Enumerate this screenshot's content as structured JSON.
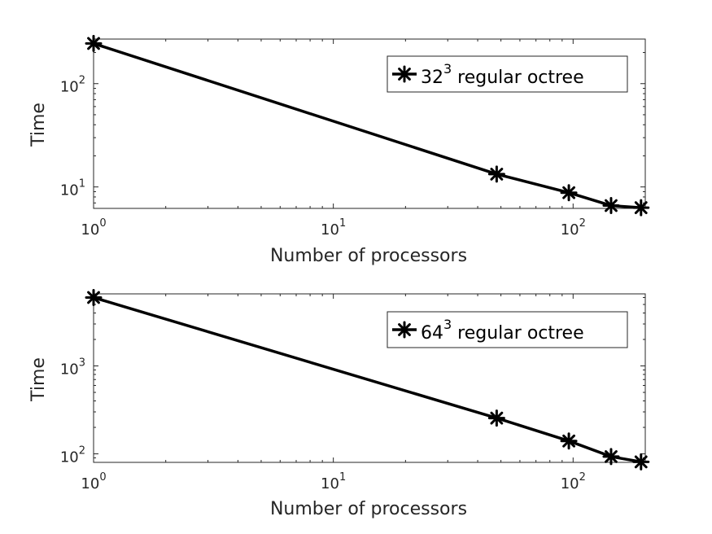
{
  "colors": {
    "line": "#000000",
    "axis": "#262626",
    "background": "#ffffff"
  },
  "chart_data": [
    {
      "type": "line",
      "xscale": "log",
      "yscale": "log",
      "xlim": [
        1,
        200
      ],
      "ylim": [
        6.2,
        270
      ],
      "xlabel": "Number of processors",
      "ylabel": "Time",
      "x_ticks": [
        {
          "value": 1,
          "base": "10",
          "exp": "0"
        },
        {
          "value": 10,
          "base": "10",
          "exp": "1"
        },
        {
          "value": 100,
          "base": "10",
          "exp": "2"
        }
      ],
      "y_ticks": [
        {
          "value": 10,
          "base": "10",
          "exp": "1"
        },
        {
          "value": 100,
          "base": "10",
          "exp": "2"
        }
      ],
      "legend": {
        "position": "top-right",
        "marker": "asterisk",
        "entries": [
          {
            "main": "32",
            "sup": "3",
            "rest": " regular octree"
          }
        ]
      },
      "series": [
        {
          "name": "32^3 regular octree",
          "marker": "asterisk",
          "x": [
            1,
            48,
            96,
            144,
            192
          ],
          "y": [
            245,
            13.3,
            8.8,
            6.6,
            6.3
          ]
        }
      ]
    },
    {
      "type": "line",
      "xscale": "log",
      "yscale": "log",
      "xlim": [
        1,
        200
      ],
      "ylim": [
        80,
        6600
      ],
      "xlabel": "Number of processors",
      "ylabel": "Time",
      "x_ticks": [
        {
          "value": 1,
          "base": "10",
          "exp": "0"
        },
        {
          "value": 10,
          "base": "10",
          "exp": "1"
        },
        {
          "value": 100,
          "base": "10",
          "exp": "2"
        }
      ],
      "y_ticks": [
        {
          "value": 100,
          "base": "10",
          "exp": "2"
        },
        {
          "value": 1000,
          "base": "10",
          "exp": "3"
        }
      ],
      "legend": {
        "position": "top-right",
        "marker": "asterisk",
        "entries": [
          {
            "main": "64",
            "sup": "3",
            "rest": " regular octree"
          }
        ]
      },
      "series": [
        {
          "name": "64^3 regular octree",
          "marker": "asterisk",
          "x": [
            1,
            48,
            96,
            144,
            192
          ],
          "y": [
            6000,
            255,
            140,
            93,
            81
          ]
        }
      ]
    }
  ]
}
